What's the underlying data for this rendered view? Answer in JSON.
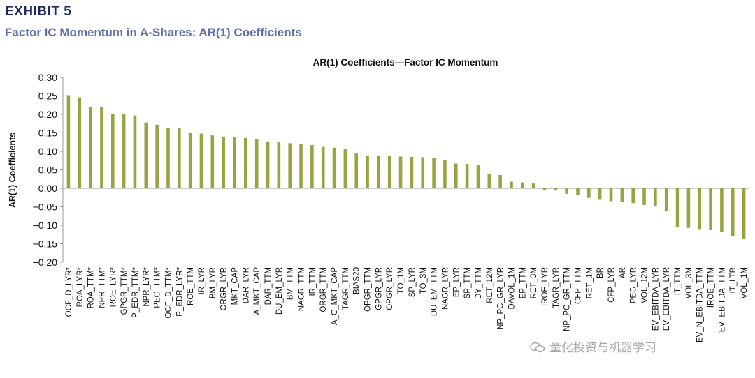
{
  "header": {
    "exhibit": "EXHIBIT 5",
    "subtitle": "Factor IC Momentum in A-Shares: AR(1) Coefficients"
  },
  "watermark": {
    "text": "量化投资与机器学习",
    "icon": "wechat-icon"
  },
  "colors": {
    "bar": "#97a441",
    "title_dark": "#1f2a5c",
    "subtitle_blue": "#5b6fb0",
    "grid": "#d9d9d9"
  },
  "chart_data": {
    "type": "bar",
    "title": "AR(1) Coefficients—Factor IC Momentum",
    "xlabel": "",
    "ylabel": "AR(1) Coefficients",
    "ylim": [
      -0.2,
      0.3
    ],
    "yticks": [
      0.3,
      0.25,
      0.2,
      0.15,
      0.1,
      0.05,
      0.0,
      -0.05,
      -0.1,
      -0.15,
      -0.2
    ],
    "ytick_labels": [
      "0.30",
      "0.25",
      "0.20",
      "0.15",
      "0.10",
      "0.05",
      "0.00",
      "−0.05",
      "−0.10",
      "−0.15",
      "−0.20"
    ],
    "grid": false,
    "categories": [
      "OCF_D_LYR*",
      "ROA_LYR*",
      "ROA_TTM*",
      "NPR_TTM*",
      "ROE_LYR*",
      "GPGR_TTM*",
      "P_EDR_TTM*",
      "NPR_LYR*",
      "PEG_TTM*",
      "OCF_D_TTM*",
      "P_EDR_LYR*",
      "ROE_TTM",
      "IR_LYR",
      "BM_LYR",
      "ORGR_LYR",
      "MKT_CAP",
      "DAR_LYR",
      "A_MKT_CAP",
      "DAR_TTM",
      "DU_EM_LYR",
      "BM_TTM",
      "NAGR_TTM",
      "IR_TTM",
      "ORGR_TTM",
      "A_C_MKT_CAP",
      "TAGR_TTM",
      "BIAS20",
      "OPGR_TTM",
      "GPGR_LYR",
      "OPGR_LYR",
      "TO_1M",
      "SP_LYR",
      "TO_3M",
      "DU_EM_TTM",
      "NAGR_LYR",
      "EP_LYR",
      "SP_TTM",
      "DY_TTM",
      "RET_12M",
      "NP_PC_GR_LYR",
      "DAVOL_1M",
      "EP_TTM",
      "RET_3M",
      "IROE_LYR",
      "TAGR_LYR",
      "NP_PC_GR_TTM",
      "CFP_TTM",
      "RET_1M",
      "BR",
      "CFP_LYR",
      "AR",
      "PEG_LYR",
      "VOL_12M",
      "EV_EBITDA_LYR",
      "EV_EBITDA_LYR",
      "IT_TTM",
      "VOL_3M",
      "EV_N_EBITDA_TTM",
      "IROE_TTM",
      "EV_EBITDA_TTM",
      "IT_LTR",
      "VOL_1M"
    ],
    "values": [
      0.252,
      0.246,
      0.22,
      0.22,
      0.201,
      0.201,
      0.197,
      0.178,
      0.172,
      0.163,
      0.163,
      0.15,
      0.148,
      0.143,
      0.14,
      0.138,
      0.136,
      0.132,
      0.127,
      0.125,
      0.122,
      0.119,
      0.117,
      0.112,
      0.11,
      0.106,
      0.095,
      0.089,
      0.089,
      0.088,
      0.086,
      0.085,
      0.084,
      0.083,
      0.077,
      0.067,
      0.066,
      0.062,
      0.039,
      0.036,
      0.018,
      0.016,
      0.013,
      -0.005,
      -0.006,
      -0.015,
      -0.018,
      -0.026,
      -0.031,
      -0.035,
      -0.036,
      -0.04,
      -0.045,
      -0.049,
      -0.062,
      -0.105,
      -0.107,
      -0.112,
      -0.113,
      -0.118,
      -0.13,
      -0.137
    ]
  }
}
